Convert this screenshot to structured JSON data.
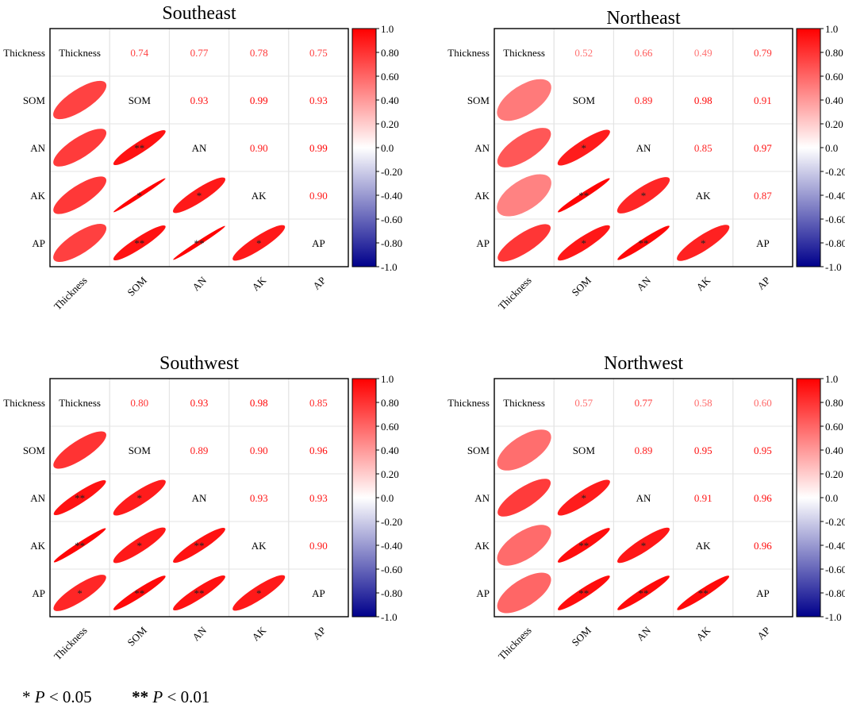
{
  "variables": [
    "Thickness",
    "SOM",
    "AN",
    "AK",
    "AP"
  ],
  "colorbar_ticks": [
    "1.0",
    "0.80",
    "0.60",
    "0.40",
    "0.20",
    "0.0",
    "-0.20",
    "-0.40",
    "-0.60",
    "-0.80",
    "-1.0"
  ],
  "colors": {
    "positive": "#ff0000",
    "negative": "#00008b",
    "mid": "#ffffff",
    "grid": "#e3e3e3",
    "value_text": "#e8242b"
  },
  "chart_data": [
    {
      "type": "heatmap",
      "title": "Southeast",
      "variables": [
        "Thickness",
        "SOM",
        "AN",
        "AK",
        "AP"
      ],
      "upper_labels": [
        [
          "",
          "0.74",
          "0.77",
          "0.78",
          "0.75"
        ],
        [
          "",
          "",
          "0.93",
          "0.99",
          "0.93"
        ],
        [
          "",
          "",
          "",
          "0.90",
          "0.99"
        ],
        [
          "",
          "",
          "",
          "",
          "0.90"
        ],
        [
          "",
          "",
          "",
          "",
          ""
        ]
      ],
      "matrix": [
        [
          1,
          0.74,
          0.77,
          0.78,
          0.75
        ],
        [
          0.74,
          1,
          0.93,
          0.99,
          0.93
        ],
        [
          0.77,
          0.93,
          1,
          0.9,
          0.99
        ],
        [
          0.78,
          0.99,
          0.9,
          1,
          0.9
        ],
        [
          0.75,
          0.93,
          0.99,
          0.9,
          1
        ]
      ],
      "significance": [
        [
          "",
          "",
          "",
          "",
          ""
        ],
        [
          "",
          "",
          "",
          "",
          ""
        ],
        [
          "",
          "**",
          "",
          "",
          ""
        ],
        [
          "",
          "*",
          "*",
          "",
          ""
        ],
        [
          "",
          "**",
          "**",
          "*",
          ""
        ]
      ],
      "colorbar_range": [
        -1,
        1
      ]
    },
    {
      "type": "heatmap",
      "title": "Northeast",
      "variables": [
        "Thickness",
        "SOM",
        "AN",
        "AK",
        "AP"
      ],
      "upper_labels": [
        [
          "",
          "0.52",
          "0.66",
          "0.49",
          "0.79"
        ],
        [
          "",
          "",
          "0.89",
          "0.98",
          "0.91"
        ],
        [
          "",
          "",
          "",
          "0.85",
          "0.97"
        ],
        [
          "",
          "",
          "",
          "",
          "0.87"
        ],
        [
          "",
          "",
          "",
          "",
          ""
        ]
      ],
      "matrix": [
        [
          1,
          0.52,
          0.66,
          0.49,
          0.79
        ],
        [
          0.52,
          1,
          0.89,
          0.98,
          0.91
        ],
        [
          0.66,
          0.89,
          1,
          0.85,
          0.97
        ],
        [
          0.49,
          0.98,
          0.85,
          1,
          0.87
        ],
        [
          0.79,
          0.91,
          0.97,
          0.87,
          1
        ]
      ],
      "significance": [
        [
          "",
          "",
          "",
          "",
          ""
        ],
        [
          "",
          "",
          "",
          "",
          ""
        ],
        [
          "",
          "*",
          "",
          "",
          ""
        ],
        [
          "",
          "**",
          "*",
          "",
          ""
        ],
        [
          "",
          "*",
          "**",
          "*",
          ""
        ]
      ],
      "colorbar_range": [
        -1,
        1
      ]
    },
    {
      "type": "heatmap",
      "title": "Southwest",
      "variables": [
        "Thickness",
        "SOM",
        "AN",
        "AK",
        "AP"
      ],
      "upper_labels": [
        [
          "",
          "0.80",
          "0.93",
          "0.98",
          "0.85"
        ],
        [
          "",
          "",
          "0.89",
          "0.90",
          "0.96"
        ],
        [
          "",
          "",
          "",
          "0.93",
          "0.93"
        ],
        [
          "",
          "",
          "",
          "",
          "0.90"
        ],
        [
          "",
          "",
          "",
          "",
          ""
        ]
      ],
      "matrix": [
        [
          1,
          0.8,
          0.93,
          0.98,
          0.85
        ],
        [
          0.8,
          1,
          0.89,
          0.9,
          0.96
        ],
        [
          0.93,
          0.89,
          1,
          0.93,
          0.93
        ],
        [
          0.98,
          0.9,
          0.93,
          1,
          0.9
        ],
        [
          0.85,
          0.96,
          0.93,
          0.9,
          1
        ]
      ],
      "significance": [
        [
          "",
          "",
          "",
          "",
          ""
        ],
        [
          "",
          "",
          "",
          "",
          ""
        ],
        [
          "**",
          "*",
          "",
          "",
          ""
        ],
        [
          "**",
          "*",
          "**",
          "",
          ""
        ],
        [
          "*",
          "**",
          "**",
          "*",
          ""
        ]
      ],
      "colorbar_range": [
        -1,
        1
      ]
    },
    {
      "type": "heatmap",
      "title": "Northwest",
      "variables": [
        "Thickness",
        "SOM",
        "AN",
        "AK",
        "AP"
      ],
      "upper_labels": [
        [
          "",
          "0.57",
          "0.77",
          "0.58",
          "0.60"
        ],
        [
          "",
          "",
          "0.89",
          "0.95",
          "0.95"
        ],
        [
          "",
          "",
          "",
          "0.91",
          "0.96"
        ],
        [
          "",
          "",
          "",
          "",
          "0.96"
        ],
        [
          "",
          "",
          "",
          "",
          ""
        ]
      ],
      "matrix": [
        [
          1,
          0.57,
          0.77,
          0.58,
          0.6
        ],
        [
          0.57,
          1,
          0.89,
          0.95,
          0.95
        ],
        [
          0.77,
          0.89,
          1,
          0.91,
          0.96
        ],
        [
          0.58,
          0.95,
          0.91,
          1,
          0.96
        ],
        [
          0.6,
          0.95,
          0.96,
          0.96,
          1
        ]
      ],
      "significance": [
        [
          "",
          "",
          "",
          "",
          ""
        ],
        [
          "",
          "",
          "",
          "",
          ""
        ],
        [
          "",
          "*",
          "",
          "",
          ""
        ],
        [
          "",
          "**",
          "*",
          "",
          ""
        ],
        [
          "",
          "**",
          "**",
          "**",
          ""
        ]
      ],
      "colorbar_range": [
        -1,
        1
      ]
    }
  ],
  "footnote": {
    "single_star": "*",
    "double_star": "**",
    "p_symbol": "P",
    "p05": "< 0.05",
    "p01": "< 0.01"
  }
}
